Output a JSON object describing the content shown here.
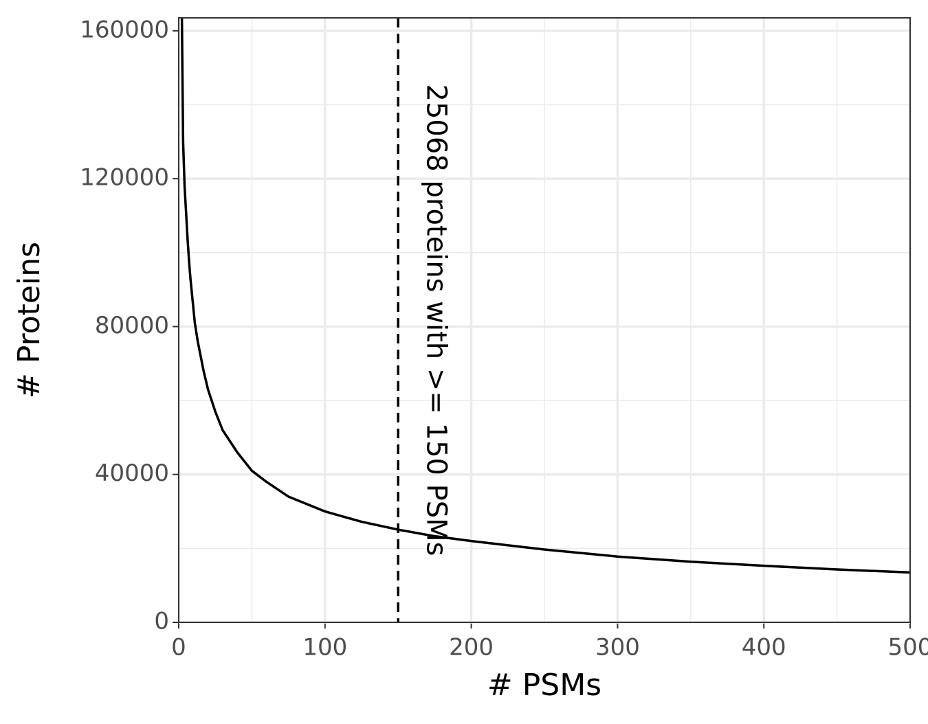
{
  "chart_data": {
    "type": "line",
    "x_label": "# PSMs",
    "y_label": "# Proteins",
    "x": [
      2,
      3,
      4,
      5,
      6,
      7,
      8,
      9,
      10,
      11,
      13,
      15,
      17,
      20,
      25,
      30,
      40,
      50,
      60,
      75,
      100,
      125,
      150,
      175,
      200,
      250,
      300,
      350,
      400,
      450,
      500
    ],
    "series": [
      {
        "name": "proteins",
        "color": "#000000",
        "values": [
          170000,
          130000,
          118000,
          111000,
          104000,
          98000,
          93000,
          89000,
          85000,
          81000,
          76000,
          72000,
          68000,
          63000,
          57000,
          52000,
          46000,
          41000,
          38000,
          34000,
          30000,
          27200,
          25068,
          23300,
          22000,
          19700,
          17800,
          16400,
          15300,
          14300,
          13500
        ]
      }
    ],
    "vline": 150,
    "vline_color": "#000000",
    "annotation": "25068 proteins with >= 150 PSMs",
    "annotation_x": 175,
    "xlim": [
      0,
      500
    ],
    "xticks": [
      0,
      100,
      200,
      300,
      400,
      500
    ],
    "xminor": [
      50,
      150,
      250,
      350,
      450
    ],
    "ylim": [
      0,
      163500
    ],
    "yticks": [
      0,
      40000,
      80000,
      120000,
      160000
    ],
    "yminor": [
      20000,
      60000,
      100000,
      140000
    ],
    "grid": true
  }
}
